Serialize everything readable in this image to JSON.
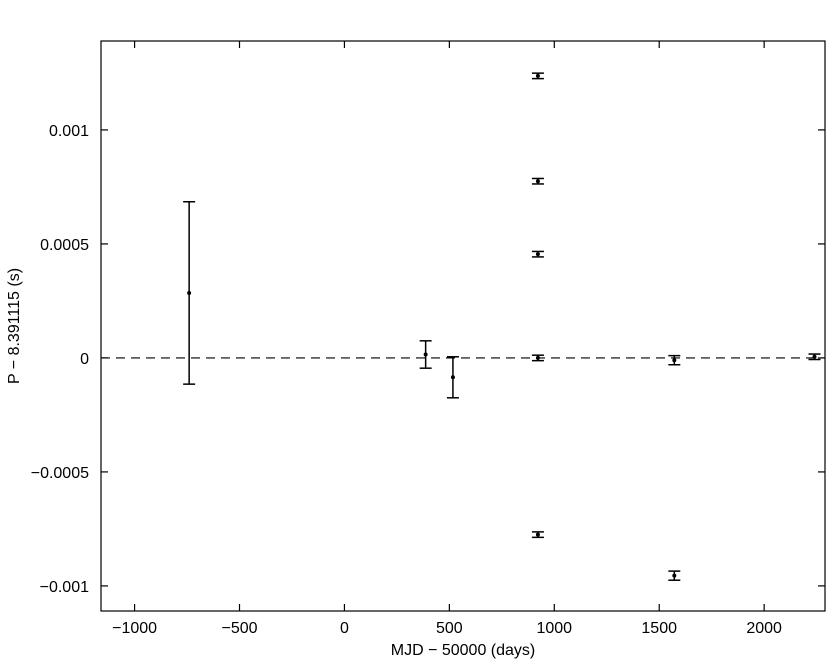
{
  "chart_data": {
    "type": "scatter",
    "xlabel": "MJD − 50000 (days)",
    "ylabel": "P − 8.391115 (s)",
    "xlim": [
      -1160,
      2290
    ],
    "ylim": [
      -0.00111,
      0.00139
    ],
    "xticks": [
      -1000,
      -500,
      0,
      500,
      1000,
      1500,
      2000
    ],
    "xtick_labels": [
      "−1000",
      "−500",
      "0",
      "500",
      "1000",
      "1500",
      "2000"
    ],
    "yticks": [
      -0.001,
      -0.0005,
      0,
      0.0005,
      0.001
    ],
    "ytick_labels": [
      "−0.001",
      "−0.0005",
      "0",
      "0.0005",
      "0.001"
    ],
    "reference_line": {
      "y": 0,
      "style": "dashed"
    },
    "grid": false,
    "points": [
      {
        "x": -740,
        "y": 0.000285,
        "err": 0.0004
      },
      {
        "x": 387,
        "y": 1.5e-05,
        "err": 6e-05
      },
      {
        "x": 517,
        "y": -8.5e-05,
        "err": 9e-05
      },
      {
        "x": 922,
        "y": 0.001237,
        "err": 1.2e-05
      },
      {
        "x": 922,
        "y": 0.000775,
        "err": 1.2e-05
      },
      {
        "x": 922,
        "y": 0.000455,
        "err": 1.2e-05
      },
      {
        "x": 922,
        "y": 0.0,
        "err": 1.2e-05
      },
      {
        "x": 922,
        "y": -0.000775,
        "err": 1.2e-05
      },
      {
        "x": 1572,
        "y": -1e-05,
        "err": 2e-05
      },
      {
        "x": 1572,
        "y": -0.000955,
        "err": 2e-05
      },
      {
        "x": 2240,
        "y": 5e-06,
        "err": 1.2e-05
      }
    ]
  }
}
